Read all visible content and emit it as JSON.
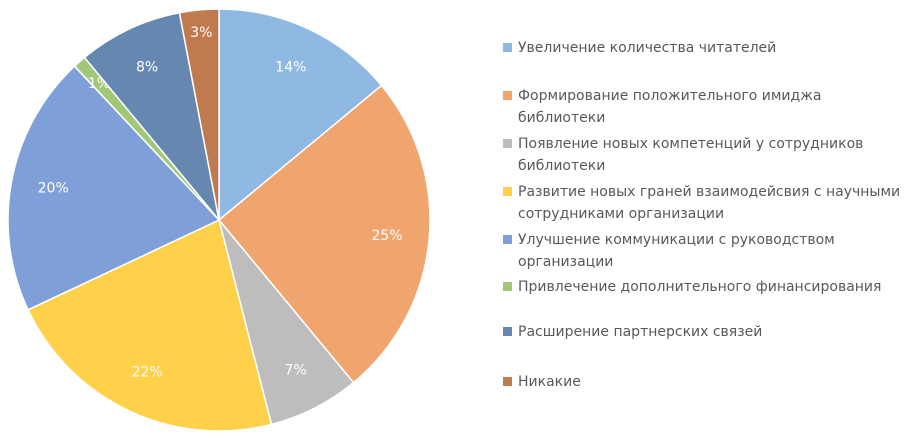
{
  "chart_data": {
    "type": "pie",
    "categories": [
      "Увеличение количества читателей",
      "Формирование положительного имиджа библиотеки",
      "Появление новых компетенций у сотрудников библиотеки",
      "Развитие новых граней взаимодейсвия с научными сотрудниками организации",
      "Улучшение коммуникации с руководством организации",
      "Привлечение дополнительного финансирования",
      "Расширение партнерских связей",
      "Никакие"
    ],
    "values": [
      14,
      25,
      7,
      22,
      20,
      1,
      8,
      3
    ],
    "value_labels": [
      "14%",
      "25%",
      "7%",
      "22%",
      "20%",
      "1%",
      "8%",
      "3%"
    ],
    "colors": [
      "#8fb9e3",
      "#f0a46e",
      "#bdbdbd",
      "#ffd04a",
      "#7f9fd8",
      "#a0c878",
      "#6688b0",
      "#c07a50"
    ],
    "legend": "right"
  }
}
